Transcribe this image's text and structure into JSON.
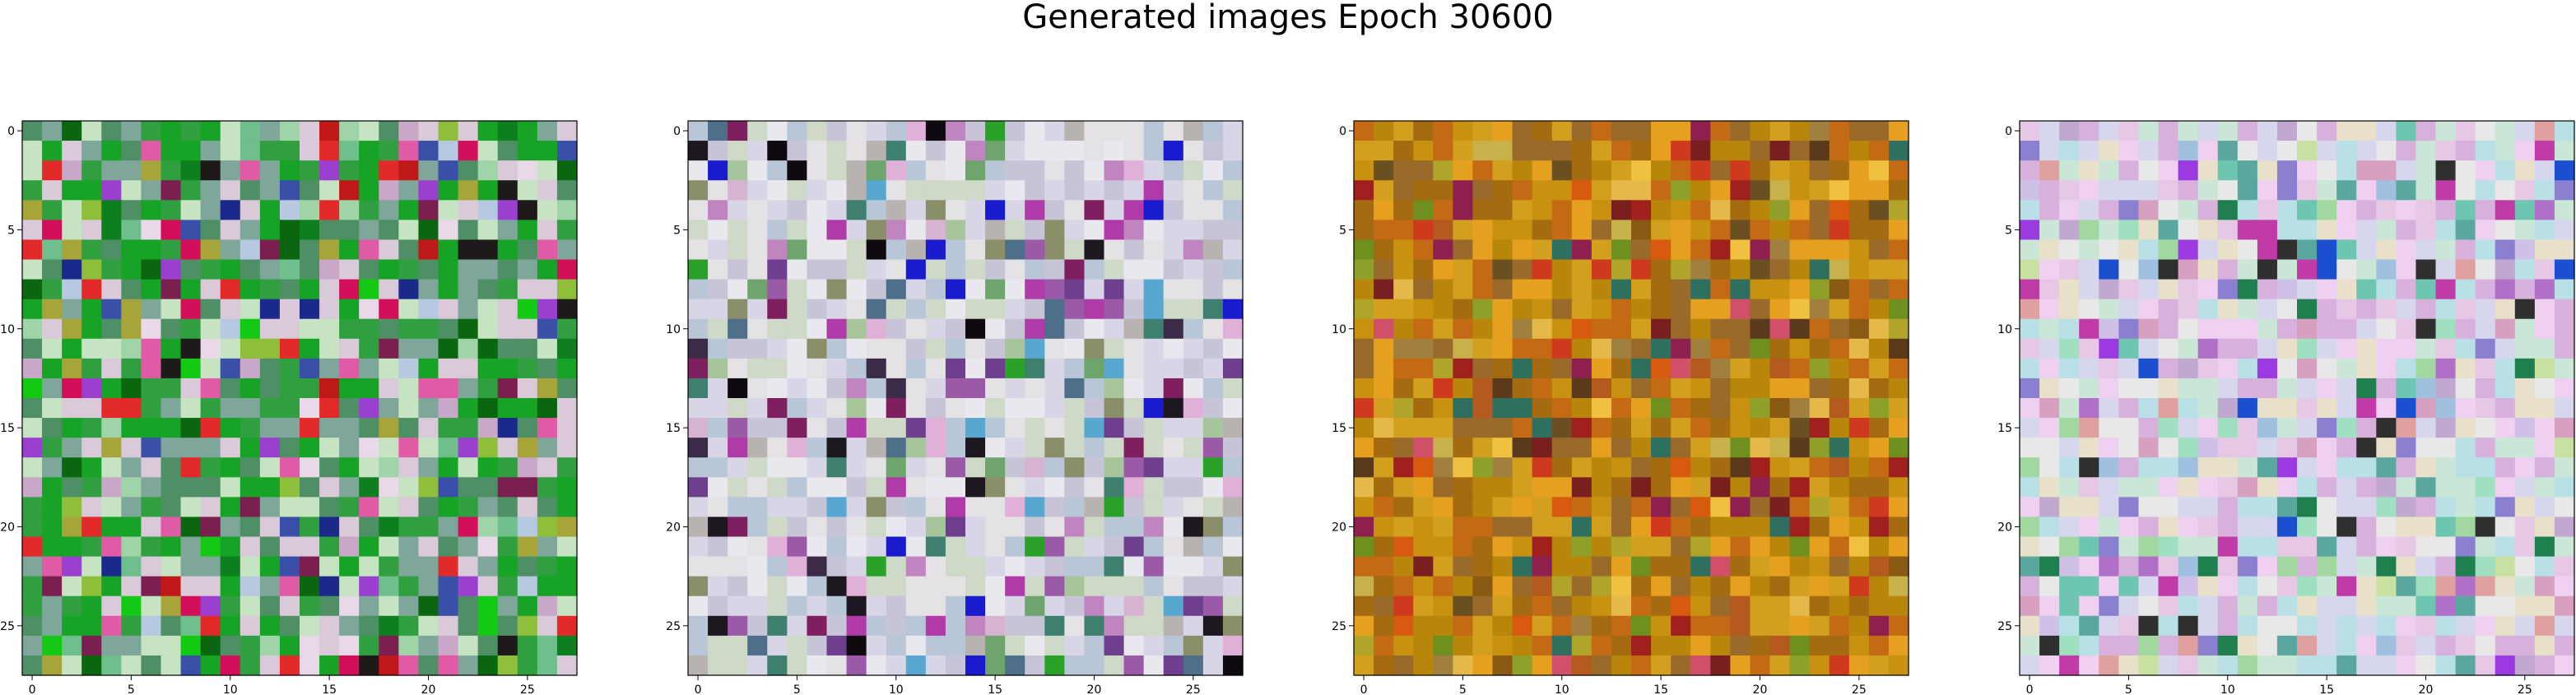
{
  "figure": {
    "title": "Generated images Epoch 30600"
  },
  "chart_data": [
    {
      "type": "heatmap",
      "panel": 1,
      "grid_size": 28,
      "x_ticks": [
        "0",
        "5",
        "10",
        "15",
        "20",
        "25"
      ],
      "y_ticks": [
        "0",
        "5",
        "10",
        "15",
        "20",
        "25"
      ],
      "xlim": [
        -0.5,
        27.5
      ],
      "ylim": [
        27.5,
        -0.5
      ],
      "palette": [
        "#6fbf8c",
        "#9fd3a8",
        "#c6e3c2",
        "#d9c9d9",
        "#c9a7c8",
        "#b6c9e0",
        "#7fa69a",
        "#4f8f66",
        "#2f9f3f",
        "#17a325",
        "#0e7f1e",
        "#d40f5a",
        "#e05aa5",
        "#7a1f4f",
        "#9a3fd0",
        "#3a4fa8",
        "#1b2a8a",
        "#e22a2a",
        "#c01818",
        "#1e1a1a",
        "#13c913",
        "#0a660f",
        "#a7a43a",
        "#8fbf3a",
        "#e8d8e8"
      ],
      "seed": 11,
      "dominant": [
        6,
        7,
        8,
        9,
        2,
        3
      ]
    },
    {
      "type": "heatmap",
      "panel": 2,
      "grid_size": 28,
      "x_ticks": [
        "0",
        "5",
        "10",
        "15",
        "20",
        "25"
      ],
      "y_ticks": [
        "0",
        "5",
        "10",
        "15",
        "20",
        "25"
      ],
      "xlim": [
        -0.5,
        27.5
      ],
      "ylim": [
        27.5,
        -0.5
      ],
      "palette": [
        "#d8d6e6",
        "#c8c4d8",
        "#b9c6d8",
        "#e5e2e6",
        "#cfd9c8",
        "#d6b3d0",
        "#c084c0",
        "#9b5aa8",
        "#6f3f8f",
        "#3b2a48",
        "#0f0a0f",
        "#1d1820",
        "#4d6f8a",
        "#6da56d",
        "#2aa22a",
        "#1a1acf",
        "#b03aa8",
        "#8a8f6a",
        "#a7c59a",
        "#e8e8ee",
        "#7f1f5f",
        "#57a7d0",
        "#e0b0d8",
        "#b8b2b0",
        "#3f7f6f"
      ],
      "seed": 23,
      "dominant": [
        0,
        1,
        2,
        3,
        4,
        19
      ]
    },
    {
      "type": "heatmap",
      "panel": 3,
      "grid_size": 28,
      "x_ticks": [
        "0",
        "5",
        "10",
        "15",
        "20",
        "25"
      ],
      "y_ticks": [
        "0",
        "5",
        "10",
        "15",
        "20",
        "25"
      ],
      "xlim": [
        -0.5,
        27.5
      ],
      "ylim": [
        27.5,
        -0.5
      ],
      "palette": [
        "#b8860b",
        "#c8910f",
        "#d2a01e",
        "#a46b10",
        "#8a5a14",
        "#c46a14",
        "#d85a0f",
        "#e6a020",
        "#b45a1e",
        "#9a6a2a",
        "#6f8f1f",
        "#8fa02a",
        "#b0a52a",
        "#7a1f1f",
        "#a0201e",
        "#cf3a1e",
        "#e5b84a",
        "#f0c040",
        "#5a3a1a",
        "#8f1f4f",
        "#d0506a",
        "#2f6f5f",
        "#a07f3f",
        "#c8b04a",
        "#6a4f20"
      ],
      "seed": 37,
      "dominant": [
        0,
        1,
        2,
        3,
        5,
        7,
        9
      ]
    },
    {
      "type": "heatmap",
      "panel": 4,
      "grid_size": 28,
      "x_ticks": [
        "0",
        "5",
        "10",
        "15",
        "20",
        "25"
      ],
      "y_ticks": [
        "0",
        "5",
        "10",
        "15",
        "20",
        "25"
      ],
      "xlim": [
        -0.5,
        27.5
      ],
      "ylim": [
        27.5,
        -0.5
      ],
      "palette": [
        "#e6c8e6",
        "#d8b0dc",
        "#c9e6d6",
        "#b8e0e6",
        "#e8e0c8",
        "#d6d6ee",
        "#c0a8d0",
        "#9fe0c0",
        "#6fc6b0",
        "#b070c8",
        "#8a7fd0",
        "#e8e8e8",
        "#c8e0a0",
        "#d8a0c0",
        "#a0c0e0",
        "#5aa7a0",
        "#1a4fd0",
        "#1f7f4f",
        "#c03aa8",
        "#9a3ae0",
        "#2f2f2f",
        "#e0a0a0",
        "#a0d8a0",
        "#f0d0f0",
        "#cfc0e8"
      ],
      "seed": 53,
      "dominant": [
        0,
        1,
        2,
        3,
        4,
        5,
        11,
        23
      ]
    }
  ]
}
